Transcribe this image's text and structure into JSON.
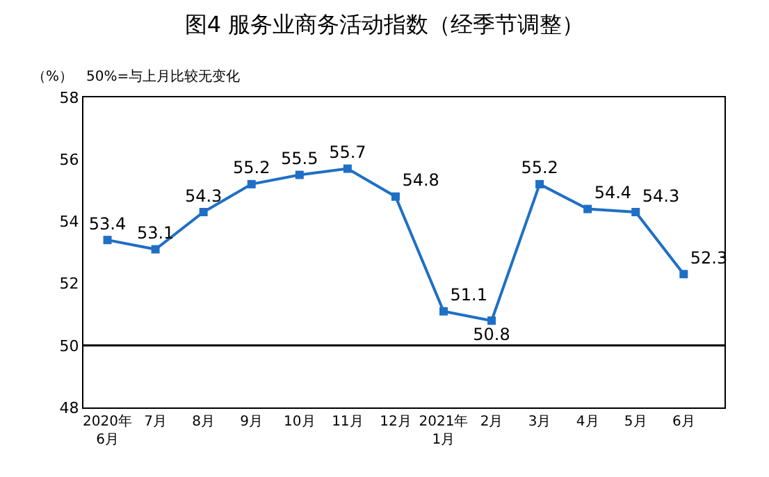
{
  "chart_data": {
    "type": "line",
    "title": "图4 服务业商务活动指数（经季节调整）",
    "ylabel": "（%）",
    "annotations": [
      "50%=与上月比较无变化"
    ],
    "categories": [
      "2020年\n6月",
      "7月",
      "8月",
      "9月",
      "10月",
      "11月",
      "12月",
      "2021年\n1月",
      "2月",
      "3月",
      "4月",
      "5月",
      "6月"
    ],
    "series": [
      {
        "color": "#1f6fc5",
        "values": [
          53.4,
          53.1,
          54.3,
          55.2,
          55.5,
          55.7,
          54.8,
          51.1,
          50.8,
          55.2,
          54.4,
          54.3,
          52.3
        ]
      }
    ],
    "ylim": [
      48,
      58
    ],
    "yticks": [
      48,
      50,
      52,
      54,
      56,
      58
    ],
    "ref_lines": [
      {
        "axis": "y",
        "value": 50,
        "color": "#000000"
      }
    ],
    "marker": "square",
    "line_style": "solid",
    "data_labels": true
  }
}
